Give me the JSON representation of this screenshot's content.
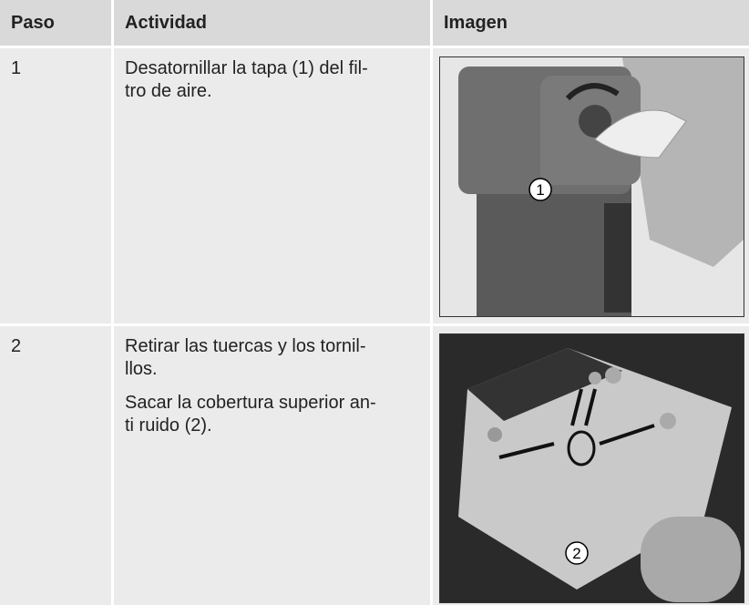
{
  "table": {
    "header": [
      "Paso",
      "Actividad",
      "Imagen"
    ],
    "rows": [
      {
        "step": "1",
        "activity": [
          [
            "Desatornillar la tapa (1) del fil-",
            "tro de aire."
          ]
        ],
        "image_callouts": [
          "1"
        ]
      },
      {
        "step": "2",
        "activity": [
          [
            "Retirar las tuercas y los tornil-",
            "llos."
          ],
          [
            "Sacar la cobertura superior an-",
            "ti ruido (2)."
          ]
        ],
        "image_callouts": [
          "2"
        ]
      }
    ]
  }
}
